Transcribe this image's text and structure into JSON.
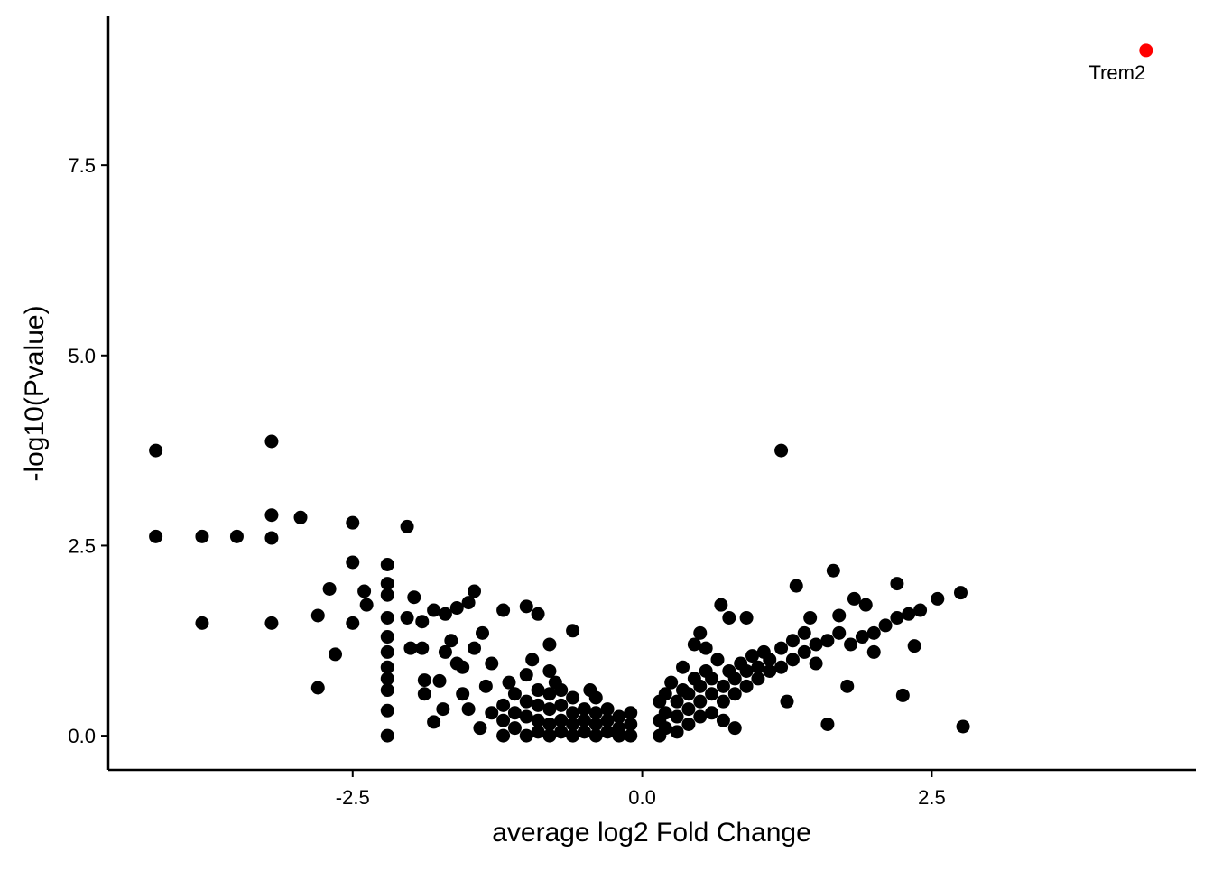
{
  "chart_data": {
    "type": "scatter",
    "xlabel": "average log2 Fold Change",
    "ylabel": "-log10(Pvalue)",
    "xlim": [
      -4.61,
      4.78
    ],
    "ylim": [
      -0.45,
      9.46
    ],
    "xticks": [
      -2.5,
      {
        "value": 0,
        "label": "0.0"
      },
      2.5
    ],
    "yticks": [
      {
        "value": 0,
        "label": "0.0"
      },
      2.5,
      {
        "value": 5,
        "label": "5.0"
      },
      7.5
    ],
    "series": [
      {
        "color": "#000000",
        "x": [
          -4.2,
          -4.2,
          -3.8,
          -3.8,
          -3.5,
          -3.2,
          -3.2,
          -3.2,
          -3.2,
          -2.95,
          -2.8,
          -2.8,
          -2.7,
          -2.65,
          -2.5,
          -2.5,
          -2.5,
          -2.4,
          -2.38,
          -2.2,
          -2.2,
          -2.2,
          -2.2,
          -2.2,
          -2.2,
          -2.2,
          -2.2,
          -2.2,
          -2.2,
          -2.2,
          -2.03,
          -2.03,
          -2.0,
          -1.97,
          -1.9,
          -1.88,
          -1.88,
          -1.8,
          -1.75,
          -1.72,
          -1.7,
          -1.65,
          -1.6,
          -1.55,
          -1.5,
          -1.45,
          -1.38,
          -1.3,
          -1.2,
          -1.0,
          -0.9,
          -0.8,
          -0.6,
          -1.8,
          -1.6,
          -1.5,
          -1.4,
          -1.3,
          -1.55,
          -1.35,
          -1.7,
          -1.9,
          -1.45,
          -1.2,
          -1.2,
          -1.2,
          -1.1,
          -1.1,
          -1.1,
          -1.0,
          -1.0,
          -1.0,
          -1.0,
          -0.9,
          -0.9,
          -0.9,
          -0.9,
          -0.8,
          -0.8,
          -0.8,
          -0.8,
          -0.8,
          -0.7,
          -0.7,
          -0.7,
          -0.7,
          -0.6,
          -0.6,
          -0.6,
          -0.6,
          -0.5,
          -0.5,
          -0.5,
          -0.4,
          -0.4,
          -0.4,
          -0.4,
          -0.3,
          -0.3,
          -0.3,
          -0.2,
          -0.2,
          -0.2,
          -0.1,
          -0.1,
          -0.1,
          -1.15,
          -0.95,
          -0.75,
          -0.45,
          0.15,
          0.15,
          0.15,
          0.2,
          0.2,
          0.2,
          0.3,
          0.3,
          0.3,
          0.35,
          0.4,
          0.4,
          0.4,
          0.45,
          0.5,
          0.5,
          0.5,
          0.55,
          0.6,
          0.6,
          0.6,
          0.65,
          0.7,
          0.7,
          0.75,
          0.8,
          0.8,
          0.85,
          0.9,
          0.9,
          0.95,
          1.0,
          1.0,
          1.05,
          1.1,
          1.1,
          1.2,
          1.2,
          1.3,
          1.3,
          1.4,
          1.4,
          1.5,
          1.5,
          1.6,
          1.7,
          1.8,
          1.9,
          2.0,
          2.1,
          2.2,
          2.3,
          0.35,
          0.55,
          0.25,
          1.2,
          1.65,
          2.2,
          1.33,
          2.75,
          2.55,
          1.83,
          1.93,
          0.68,
          1.7,
          0.75,
          0.9,
          2.4,
          2.35,
          1.77,
          2.25,
          2.77,
          1.6,
          1.25,
          0.8,
          0.5,
          0.45,
          1.45,
          2.0,
          0.7
        ],
        "values": [
          3.75,
          2.62,
          2.62,
          1.48,
          2.62,
          3.87,
          2.9,
          2.6,
          1.48,
          2.87,
          1.58,
          0.63,
          1.93,
          1.07,
          2.8,
          2.28,
          1.48,
          1.9,
          1.72,
          2.25,
          2.0,
          1.85,
          1.55,
          1.3,
          1.1,
          0.9,
          0.75,
          0.6,
          0.33,
          0.0,
          2.75,
          1.55,
          1.15,
          1.82,
          1.5,
          0.73,
          0.55,
          1.65,
          0.72,
          0.35,
          1.6,
          1.25,
          1.68,
          0.9,
          1.75,
          1.9,
          1.35,
          0.95,
          1.65,
          1.7,
          1.6,
          1.2,
          1.38,
          0.18,
          0.95,
          0.35,
          0.1,
          0.3,
          0.55,
          0.65,
          1.1,
          1.15,
          1.15,
          0.0,
          0.2,
          0.4,
          0.1,
          0.3,
          0.55,
          0.0,
          0.25,
          0.45,
          0.8,
          0.05,
          0.2,
          0.4,
          0.6,
          0.0,
          0.15,
          0.35,
          0.55,
          0.85,
          0.05,
          0.2,
          0.4,
          0.6,
          0.0,
          0.15,
          0.3,
          0.5,
          0.05,
          0.2,
          0.35,
          0.0,
          0.15,
          0.3,
          0.5,
          0.05,
          0.2,
          0.35,
          0.0,
          0.1,
          0.25,
          0.0,
          0.15,
          0.3,
          0.7,
          1.0,
          0.7,
          0.6,
          0.0,
          0.2,
          0.45,
          0.1,
          0.3,
          0.55,
          0.05,
          0.25,
          0.45,
          0.6,
          0.15,
          0.35,
          0.55,
          0.75,
          0.25,
          0.45,
          0.65,
          0.85,
          0.3,
          0.55,
          0.75,
          1.0,
          0.45,
          0.65,
          0.85,
          0.55,
          0.75,
          0.95,
          0.65,
          0.85,
          1.05,
          0.75,
          0.9,
          1.1,
          0.85,
          1.0,
          0.9,
          1.15,
          1.0,
          1.25,
          1.1,
          1.35,
          1.2,
          0.95,
          1.25,
          1.35,
          1.2,
          1.3,
          1.35,
          1.45,
          1.55,
          1.6,
          0.9,
          1.15,
          0.7,
          3.75,
          2.17,
          2.0,
          1.97,
          1.88,
          1.8,
          1.8,
          1.72,
          1.72,
          1.58,
          1.55,
          1.55,
          1.65,
          1.18,
          0.65,
          0.53,
          0.12,
          0.15,
          0.45,
          0.1,
          1.35,
          1.2,
          1.55,
          1.1,
          0.2
        ]
      },
      {
        "color": "#ff0000",
        "x": [
          4.35
        ],
        "values": [
          9.01
        ],
        "labels": [
          "Trem2"
        ]
      }
    ]
  }
}
